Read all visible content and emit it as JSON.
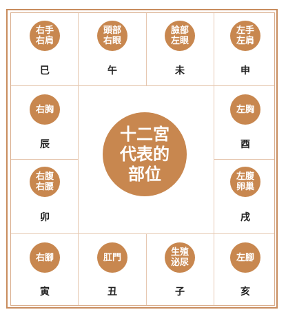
{
  "center": {
    "lines": [
      "十二宮",
      "代表的",
      "部位"
    ]
  },
  "cells": [
    {
      "id": "si",
      "badge": [
        "右手",
        "右肩"
      ],
      "branch": "巳"
    },
    {
      "id": "wu",
      "badge": [
        "頭部",
        "右眼"
      ],
      "branch": "午"
    },
    {
      "id": "wei",
      "badge": [
        "臉部",
        "左眼"
      ],
      "branch": "未"
    },
    {
      "id": "shen",
      "badge": [
        "左手",
        "左肩"
      ],
      "branch": "申"
    },
    {
      "id": "chen",
      "badge": [
        "右胸"
      ],
      "branch": "辰"
    },
    {
      "id": "you",
      "badge": [
        "左胸"
      ],
      "branch": "酉"
    },
    {
      "id": "mao",
      "badge": [
        "右腹",
        "右腰"
      ],
      "branch": "卯"
    },
    {
      "id": "xu",
      "badge": [
        "左腹",
        "卵巢"
      ],
      "branch": "戌"
    },
    {
      "id": "yin",
      "badge": [
        "右腳"
      ],
      "branch": "寅"
    },
    {
      "id": "chou",
      "badge": [
        "肛門"
      ],
      "branch": "丑"
    },
    {
      "id": "zi",
      "badge": [
        "生殖",
        "泌尿"
      ],
      "branch": "子"
    },
    {
      "id": "hai",
      "badge": [
        "左腳"
      ],
      "branch": "亥"
    }
  ],
  "colors": {
    "accent": "#c8874f",
    "border": "#c88c5e",
    "grid": "#e6c8b1",
    "text": "#222222"
  }
}
